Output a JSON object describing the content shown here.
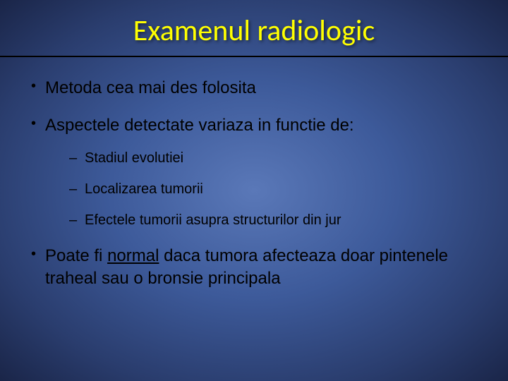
{
  "slide": {
    "title": "Examenul radiologic",
    "bullets": [
      {
        "text": "Metoda cea mai des folosita",
        "subs": []
      },
      {
        "text": "Aspectele detectate variaza in functie de:",
        "subs": [
          "Stadiul evolutiei",
          "Localizarea tumorii",
          "Efectele tumorii asupra structurilor din jur"
        ]
      },
      {
        "text_before": "Poate fi ",
        "text_underline": "normal",
        "text_after": " daca tumora afecteaza doar pintenele traheal sau o bronsie principala",
        "subs": []
      }
    ]
  },
  "colors": {
    "title_color": "#ffff00",
    "text_color": "#000000",
    "bg_gradient_center": "#5a78b8",
    "bg_gradient_edge": "#1a2548",
    "divider_color": "#000000"
  },
  "typography": {
    "title_fontsize": 42,
    "main_bullet_fontsize": 24,
    "sub_bullet_fontsize": 20,
    "title_font": "Calibri",
    "body_font": "Arial"
  }
}
